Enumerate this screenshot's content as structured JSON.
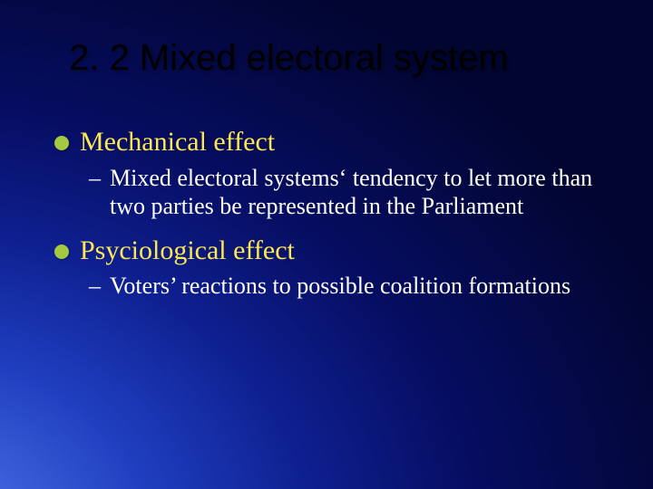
{
  "slide": {
    "title": "2. 2 Mixed electoral system",
    "background": {
      "gradient_center_color": "#5a7de0",
      "gradient_outer_color": "#020530",
      "type": "radial"
    },
    "title_style": {
      "color": "#000000",
      "fontsize": 40,
      "font_family": "Arial"
    },
    "body_style": {
      "l1_color": "#fce651",
      "l1_bullet_color": "#a4c941",
      "l1_fontsize": 30,
      "l2_color": "#ffffff",
      "l2_fontsize": 26,
      "font_family": "Times New Roman"
    },
    "bullets": [
      {
        "level": 1,
        "text": "Mechanical effect"
      },
      {
        "level": 2,
        "text": "Mixed electoral systems‘ tendency to let more than two parties be represented in the Parliament"
      },
      {
        "level": 1,
        "text": "Psyciological effect"
      },
      {
        "level": 2,
        "text": "Voters’ reactions to possible coalition formations"
      }
    ]
  }
}
